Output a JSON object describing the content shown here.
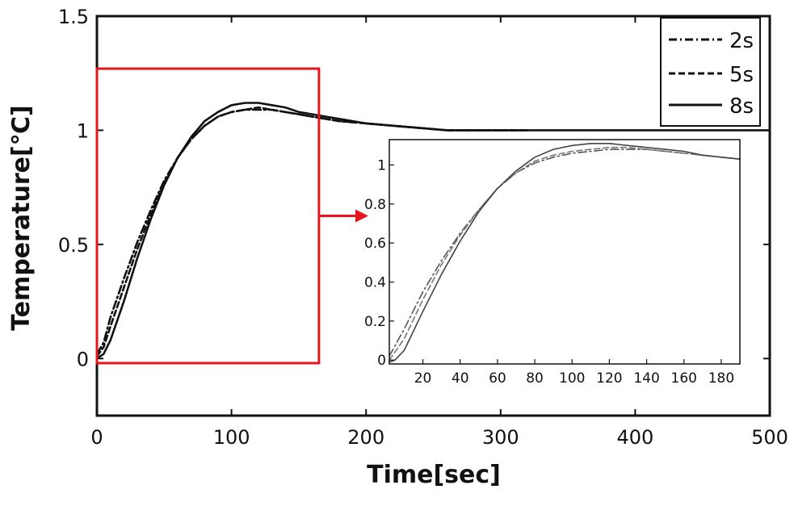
{
  "chart_data": [
    {
      "name": "main",
      "type": "line",
      "title": "",
      "xlabel": "Time[sec]",
      "ylabel": "Temperature[℃]",
      "xlim": [
        0,
        500
      ],
      "ylim": [
        -0.25,
        1.5
      ],
      "xticks": [
        0,
        100,
        200,
        300,
        400,
        500
      ],
      "yticks": [
        0,
        0.5,
        1,
        1.5
      ],
      "xtick_labels": [
        "0",
        "100",
        "200",
        "300",
        "400",
        "500"
      ],
      "ytick_labels": [
        "0",
        "0.5",
        "1",
        "1.5"
      ],
      "grid": false,
      "legend_position": "top-right",
      "series": [
        {
          "name": "2s",
          "style": "dash-dot",
          "color": "#111111",
          "x": [
            0,
            5,
            10,
            20,
            30,
            40,
            50,
            60,
            70,
            80,
            90,
            100,
            110,
            120,
            130,
            140,
            150,
            160,
            170,
            180,
            200,
            220,
            240,
            260,
            280,
            300,
            320
          ],
          "y": [
            0.02,
            0.07,
            0.18,
            0.35,
            0.51,
            0.65,
            0.78,
            0.88,
            0.96,
            1.02,
            1.06,
            1.08,
            1.09,
            1.09,
            1.09,
            1.08,
            1.07,
            1.06,
            1.05,
            1.04,
            1.03,
            1.02,
            1.01,
            1.0,
            1.0,
            1.0,
            1.0
          ]
        },
        {
          "name": "5s",
          "style": "dashed",
          "color": "#111111",
          "x": [
            0,
            5,
            10,
            20,
            30,
            40,
            50,
            60,
            70,
            80,
            90,
            100,
            110,
            120,
            130,
            140,
            150,
            160,
            170,
            180,
            200,
            220,
            240,
            260,
            280,
            300,
            320
          ],
          "y": [
            0.01,
            0.05,
            0.14,
            0.31,
            0.48,
            0.63,
            0.77,
            0.88,
            0.96,
            1.02,
            1.06,
            1.08,
            1.09,
            1.1,
            1.09,
            1.08,
            1.07,
            1.06,
            1.05,
            1.04,
            1.03,
            1.02,
            1.01,
            1.0,
            1.0,
            1.0,
            1.0
          ]
        },
        {
          "name": "8s",
          "style": "solid",
          "color": "#111111",
          "x": [
            0,
            5,
            10,
            20,
            30,
            40,
            50,
            60,
            70,
            80,
            90,
            100,
            110,
            120,
            130,
            140,
            150,
            160,
            170,
            180,
            200,
            220,
            240,
            260,
            280,
            300,
            320,
            400,
            500
          ],
          "y": [
            0.0,
            0.02,
            0.08,
            0.25,
            0.44,
            0.61,
            0.76,
            0.88,
            0.97,
            1.04,
            1.08,
            1.11,
            1.12,
            1.12,
            1.11,
            1.1,
            1.08,
            1.07,
            1.06,
            1.05,
            1.03,
            1.02,
            1.01,
            1.0,
            1.0,
            1.0,
            1.0,
            1.0,
            1.0
          ]
        }
      ]
    },
    {
      "name": "inset",
      "type": "line",
      "title": "",
      "xlabel": "",
      "ylabel": "",
      "xlim": [
        2,
        190
      ],
      "ylim": [
        -0.02,
        1.13
      ],
      "xticks": [
        20,
        40,
        60,
        80,
        100,
        120,
        140,
        160,
        180
      ],
      "yticks": [
        0,
        0.2,
        0.4,
        0.6,
        0.8,
        1
      ],
      "xtick_labels": [
        "20",
        "40",
        "60",
        "80",
        "100",
        "120",
        "140",
        "160",
        "180"
      ],
      "ytick_labels": [
        "0",
        "0.2",
        "0.4",
        "0.6",
        "0.8",
        "1"
      ],
      "grid": false,
      "zoom_region_of_main": {
        "x": [
          0,
          165
        ],
        "y": [
          -0.02,
          1.27
        ]
      },
      "series": [
        {
          "name": "2s",
          "style": "dash-dot",
          "color": "#555555",
          "x": [
            2,
            10,
            20,
            30,
            40,
            50,
            60,
            70,
            80,
            90,
            100,
            110,
            120,
            130,
            140,
            150,
            160,
            170,
            180,
            190
          ],
          "y": [
            0.02,
            0.16,
            0.35,
            0.51,
            0.65,
            0.77,
            0.88,
            0.96,
            1.01,
            1.04,
            1.06,
            1.07,
            1.08,
            1.08,
            1.08,
            1.07,
            1.06,
            1.05,
            1.04,
            1.03
          ]
        },
        {
          "name": "5s",
          "style": "dashed",
          "color": "#777777",
          "x": [
            2,
            10,
            20,
            30,
            40,
            50,
            60,
            70,
            80,
            90,
            100,
            110,
            120,
            130,
            140,
            150,
            160,
            170,
            180,
            190
          ],
          "y": [
            0.0,
            0.11,
            0.31,
            0.49,
            0.64,
            0.77,
            0.88,
            0.96,
            1.02,
            1.05,
            1.07,
            1.08,
            1.09,
            1.09,
            1.08,
            1.07,
            1.06,
            1.05,
            1.04,
            1.03
          ]
        },
        {
          "name": "8s",
          "style": "solid",
          "color": "#444444",
          "x": [
            2,
            5,
            10,
            20,
            30,
            40,
            50,
            60,
            70,
            80,
            90,
            100,
            110,
            120,
            130,
            140,
            150,
            160,
            170,
            180,
            190
          ],
          "y": [
            -0.01,
            0.0,
            0.05,
            0.25,
            0.44,
            0.61,
            0.76,
            0.88,
            0.97,
            1.04,
            1.08,
            1.1,
            1.11,
            1.11,
            1.1,
            1.09,
            1.08,
            1.07,
            1.05,
            1.04,
            1.03
          ]
        }
      ]
    }
  ]
}
